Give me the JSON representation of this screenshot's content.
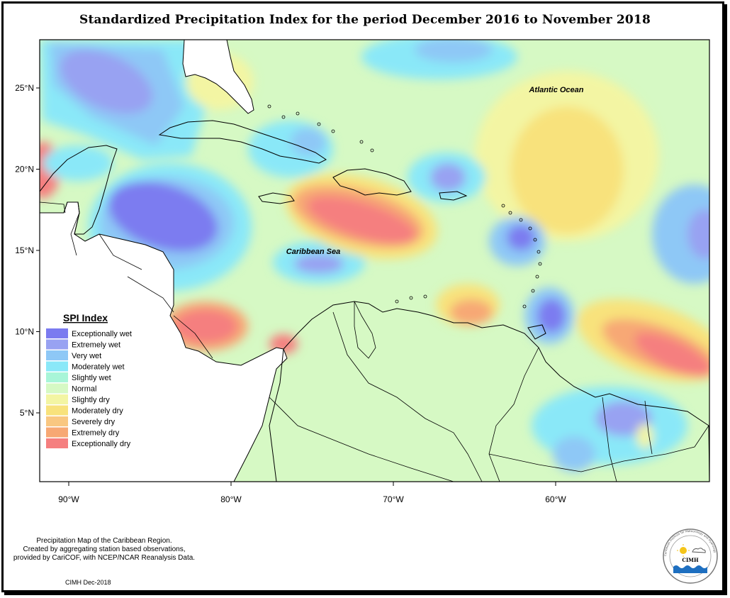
{
  "title": "Standardized Precipitation Index for the period December 2016 to November 2018",
  "map": {
    "lat_ticks": [
      {
        "label": "25°N",
        "value": 25
      },
      {
        "label": "20°N",
        "value": 20
      },
      {
        "label": "15°N",
        "value": 15
      },
      {
        "label": "10°N",
        "value": 10
      },
      {
        "label": "5°N",
        "value": 5
      }
    ],
    "lon_ticks": [
      {
        "label": "90°W",
        "value": -90
      },
      {
        "label": "80°W",
        "value": -80
      },
      {
        "label": "70°W",
        "value": -70
      },
      {
        "label": "60°W",
        "value": -60
      }
    ],
    "places": {
      "atlantic": "Atlantic Ocean",
      "caribbean": "Caribbean Sea"
    }
  },
  "legend": {
    "title": "SPI Index",
    "items": [
      {
        "label": "Exceptionally wet",
        "color": "#7b7bf0"
      },
      {
        "label": "Extremely wet",
        "color": "#98a2f2"
      },
      {
        "label": "Very wet",
        "color": "#8ec8f6"
      },
      {
        "label": "Moderately wet",
        "color": "#8ae8f8"
      },
      {
        "label": "Slightly wet",
        "color": "#a8f5d8"
      },
      {
        "label": "Normal",
        "color": "#d6f9c4"
      },
      {
        "label": "Slightly dry",
        "color": "#f3f5a3"
      },
      {
        "label": "Moderately dry",
        "color": "#f8e27c"
      },
      {
        "label": "Severely dry",
        "color": "#f9c781"
      },
      {
        "label": "Extremely dry",
        "color": "#f7a874"
      },
      {
        "label": "Exceptionally dry",
        "color": "#f57f7f"
      }
    ]
  },
  "credit": {
    "line1": "Precipitation Map of the Caribbean Region.",
    "line2": "Created by aggregating station based observations,",
    "line3": "provided by CariCOF, with NCEP/NCAR Reanalysis Data.",
    "stamp": "CIMH Dec-2018"
  },
  "logo": {
    "text": "CIMH",
    "ring_text": "Caribbean Institute for Meteorology and Hydrology"
  }
}
